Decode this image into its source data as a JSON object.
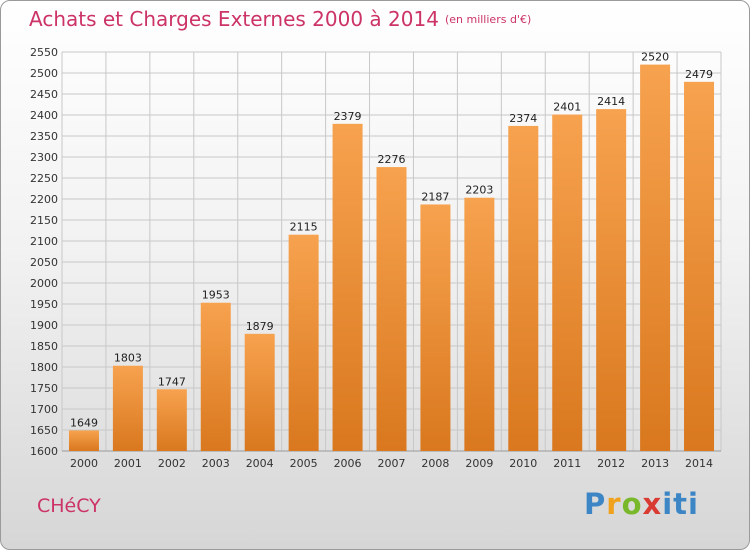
{
  "header": {
    "title": "Achats et Charges Externes 2000 à 2014",
    "subtitle": "(en milliers d'€)"
  },
  "footer": {
    "city": "CHéCY",
    "logo": {
      "p": "P",
      "r": "r",
      "o": "o",
      "x": "x",
      "iti": "iti"
    }
  },
  "colors": {
    "title": "#cc3366",
    "bar_light": "#f7a24f",
    "bar_dark": "#d9781e",
    "grid": "#c8c8c8"
  },
  "chart_data": {
    "type": "bar",
    "title": "Achats et Charges Externes 2000 à 2014",
    "subtitle": "(en milliers d'€)",
    "xlabel": "",
    "ylabel": "",
    "categories": [
      "2000",
      "2001",
      "2002",
      "2003",
      "2004",
      "2005",
      "2006",
      "2007",
      "2008",
      "2009",
      "2010",
      "2011",
      "2012",
      "2013",
      "2014"
    ],
    "values": [
      1649,
      1803,
      1747,
      1953,
      1879,
      2115,
      2379,
      2276,
      2187,
      2203,
      2374,
      2401,
      2414,
      2520,
      2479
    ],
    "ylim": [
      1600,
      2550
    ],
    "yticks": [
      1600,
      1650,
      1700,
      1750,
      1800,
      1850,
      1900,
      1950,
      2000,
      2050,
      2100,
      2150,
      2200,
      2250,
      2300,
      2350,
      2400,
      2450,
      2500,
      2550
    ],
    "grid": true,
    "legend": "none"
  }
}
